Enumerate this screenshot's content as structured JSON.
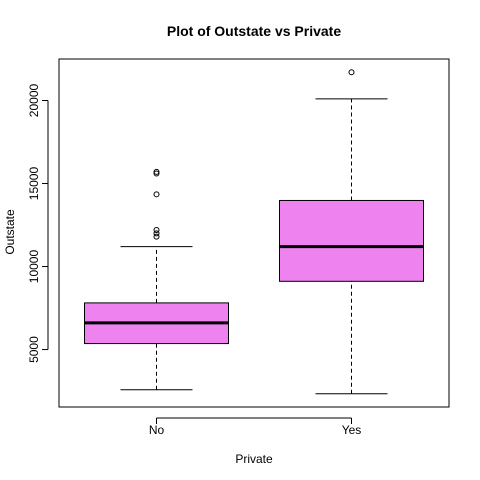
{
  "chart_data": {
    "type": "boxplot",
    "title": "Plot of Outstate vs Private",
    "xlabel": "Private",
    "ylabel": "Outstate",
    "categories": [
      "No",
      "Yes"
    ],
    "yticks": [
      5000,
      10000,
      15000,
      20000
    ],
    "ylim": [
      1540,
      22500
    ],
    "grid": false,
    "legend": "none",
    "box_color": "#ee82ee",
    "boxes": [
      {
        "category": "No",
        "whisker_low": 2580,
        "q1": 5360,
        "median": 6610,
        "q3": 7810,
        "whisker_high": 11200,
        "outliers": [
          11800,
          12000,
          12200,
          14350,
          15600,
          15700
        ]
      },
      {
        "category": "Yes",
        "whisker_low": 2340,
        "q1": 9110,
        "median": 11200,
        "q3": 13980,
        "whisker_high": 20100,
        "outliers": [
          21700
        ]
      }
    ]
  }
}
